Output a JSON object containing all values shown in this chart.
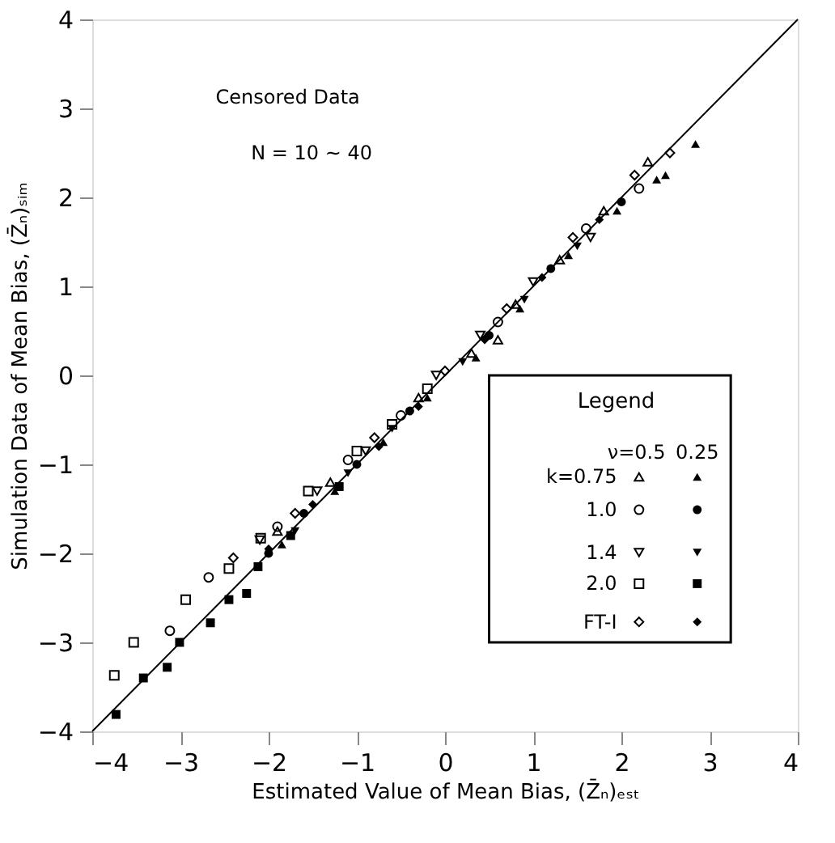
{
  "chart_data": {
    "type": "scatter",
    "xlabel": "Estimated Value of Mean Bias, (Z̄ₙ)ₑₛₜ",
    "ylabel": "Simulation Data of Mean Bias, (Z̄ₙ)ₛᵢₘ",
    "legend_title": "Legend",
    "annotations": [
      "Censored Data",
      "N = 10 ~ 40",
      "ν=0.5",
      "0.25"
    ],
    "xlim": [
      -4,
      4
    ],
    "ylim": [
      -4,
      4
    ],
    "xticks": [
      -4,
      -3,
      -2,
      -1,
      0,
      1,
      2,
      3,
      4
    ],
    "yticks": [
      -4,
      -3,
      -2,
      -1,
      0,
      1,
      2,
      3,
      4
    ],
    "grid": false,
    "legend": "bottom right",
    "series": [
      {
        "name": "k=0.75",
        "color": "#000000",
        "marker": "triangle",
        "x": [
          -1.9,
          -1.3,
          0.6,
          -0.3,
          0.3,
          0.8,
          1.3,
          1.8,
          2.3
        ],
        "values": [
          -1.75,
          -1.2,
          0.4,
          -0.25,
          0.25,
          0.8,
          1.3,
          1.85,
          2.4
        ]
      },
      {
        "color": "#000000",
        "marker": "triangle",
        "x": [
          -1.85,
          -1.25,
          -0.7,
          -0.2,
          0.35,
          0.85,
          1.4,
          1.95,
          2.4,
          2.5,
          2.84
        ],
        "values": [
          -1.9,
          -1.3,
          -0.75,
          -0.25,
          0.2,
          0.75,
          1.35,
          1.85,
          2.2,
          2.25,
          2.6
        ]
      },
      {
        "name": "1.0",
        "color": "#000000",
        "marker": "circle",
        "x": [
          -3.12,
          -2.68,
          -1.9,
          -1.1,
          -0.5,
          0.6,
          1.6,
          2.2
        ],
        "values": [
          -2.87,
          -2.27,
          -1.7,
          -0.95,
          -0.45,
          0.6,
          1.65,
          2.1
        ]
      },
      {
        "color": "#000000",
        "marker": "circle",
        "x": [
          -2.0,
          -1.6,
          -1.0,
          -0.4,
          0.5,
          1.2,
          2.0
        ],
        "values": [
          -2.0,
          -1.55,
          -1.0,
          -0.4,
          0.45,
          1.2,
          1.95
        ]
      },
      {
        "name": "1.4",
        "color": "#000000",
        "marker": "triangle-down",
        "x": [
          -2.1,
          -1.45,
          -0.9,
          -0.1,
          0.4,
          1.0,
          1.65
        ],
        "values": [
          -1.85,
          -1.3,
          -0.85,
          0.0,
          0.45,
          1.05,
          1.55
        ]
      },
      {
        "color": "#000000",
        "marker": "triangle-down",
        "x": [
          -1.7,
          -1.1,
          -0.6,
          0.2,
          0.9,
          1.5
        ],
        "values": [
          -1.75,
          -1.1,
          -0.6,
          0.15,
          0.85,
          1.45
        ]
      },
      {
        "name": "2.0",
        "color": "#000000",
        "marker": "square",
        "x": [
          -3.75,
          -3.53,
          -2.94,
          -2.45,
          -2.09,
          -1.55,
          -1.0,
          -0.6,
          -0.2
        ],
        "values": [
          -3.37,
          -3.0,
          -2.52,
          -2.17,
          -1.83,
          -1.3,
          -0.85,
          -0.55,
          -0.15
        ]
      },
      {
        "color": "#000000",
        "marker": "square",
        "x": [
          -3.73,
          -3.42,
          -3.15,
          -3.01,
          -2.66,
          -2.45,
          -2.25,
          -2.12,
          -1.75,
          -1.2
        ],
        "values": [
          -3.81,
          -3.4,
          -3.28,
          -3.0,
          -2.78,
          -2.52,
          -2.45,
          -2.15,
          -1.8,
          -1.25
        ]
      },
      {
        "name": "FT-I",
        "color": "#000000",
        "marker": "diamond",
        "x": [
          -2.4,
          -1.7,
          -0.8,
          0.0,
          0.7,
          1.45,
          2.15,
          2.55
        ],
        "values": [
          -2.05,
          -1.55,
          -0.7,
          0.05,
          0.75,
          1.55,
          2.25,
          2.5
        ]
      },
      {
        "color": "#000000",
        "marker": "diamond",
        "x": [
          -2.0,
          -1.5,
          -0.75,
          -0.3,
          0.45,
          1.1,
          1.75
        ],
        "values": [
          -1.95,
          -1.45,
          -0.8,
          -0.35,
          0.4,
          1.1,
          1.75
        ]
      },
      {
        "type": "line",
        "color": "#000000",
        "x": [
          -4,
          4
        ],
        "values": [
          -4,
          4
        ]
      }
    ]
  }
}
